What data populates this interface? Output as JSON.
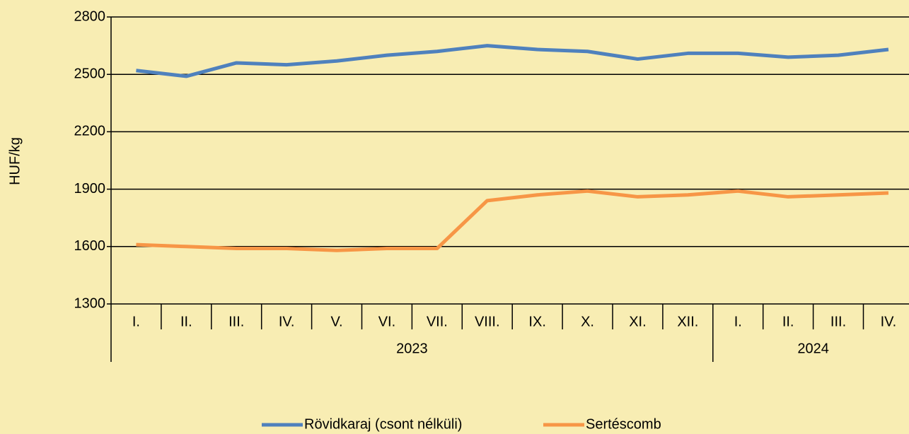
{
  "chart_data": {
    "type": "line",
    "y_label": "HUF/kg",
    "categories": [
      "I.",
      "II.",
      "III.",
      "IV.",
      "V.",
      "VI.",
      "VII.",
      "VIII.",
      "IX.",
      "X.",
      "XI.",
      "XII.",
      "I.",
      "II.",
      "III.",
      "IV."
    ],
    "x_groups": [
      "2023",
      "2023",
      "2023",
      "2023",
      "2023",
      "2023",
      "2023",
      "2023",
      "2023",
      "2023",
      "2023",
      "2023",
      "2024",
      "2024",
      "2024",
      "2024"
    ],
    "series": [
      {
        "name": "Rövidkaraj (csont nélküli)",
        "color": "#4f81bd",
        "values": [
          2520,
          2490,
          2560,
          2550,
          2570,
          2600,
          2620,
          2650,
          2630,
          2620,
          2580,
          2610,
          2610,
          2590,
          2600,
          2630
        ]
      },
      {
        "name": "Sertéscomb",
        "color": "#f79646",
        "values": [
          1610,
          1600,
          1590,
          1590,
          1580,
          1590,
          1590,
          1840,
          1870,
          1890,
          1860,
          1870,
          1890,
          1860,
          1870,
          1880
        ]
      }
    ],
    "ylim": [
      1300,
      2800
    ],
    "yticks": [
      1300,
      1600,
      1900,
      2200,
      2500,
      2800
    ],
    "grid": true,
    "legend": "bottom"
  }
}
